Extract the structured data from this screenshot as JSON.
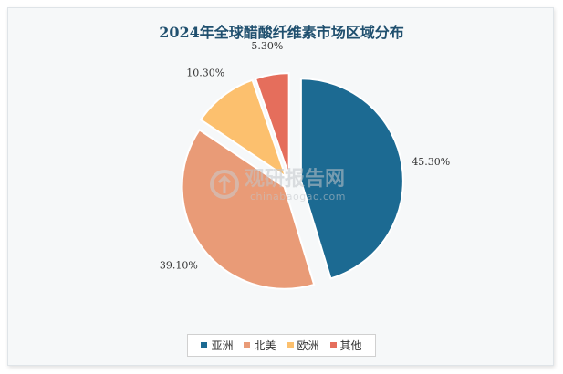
{
  "chart_data": {
    "type": "pie",
    "title": "2024年全球醋酸纤维素市场区域分布",
    "categories": [
      "亚洲",
      "北美",
      "欧洲",
      "其他"
    ],
    "values": [
      45.3,
      39.1,
      10.3,
      5.3
    ],
    "labels": [
      "45.30%",
      "39.10%",
      "10.30%",
      "5.30%"
    ],
    "colors": [
      "#1c6a92",
      "#e99b77",
      "#fcc06e",
      "#e56e5c"
    ],
    "legend_position": "bottom",
    "exploded": true
  },
  "watermark": {
    "cn": "观研报告网",
    "en": "chinabaogao.com"
  }
}
